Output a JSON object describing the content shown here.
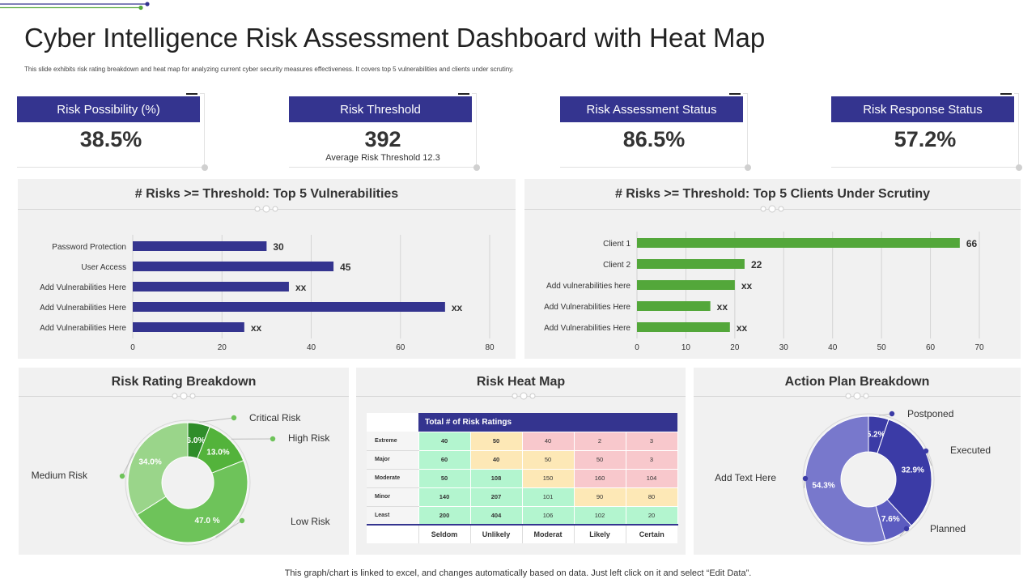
{
  "page": {
    "title": "Cyber Intelligence Risk Assessment Dashboard with Heat Map",
    "subtitle": "This slide exhibits risk rating breakdown and heat map for analyzing current cyber security measures effectiveness. It covers top 5 vulnerabilities and clients under scrutiny.",
    "footer": "This graph/chart is linked to excel,  and changes automatically based on data. Just left click on it and select “Edit Data”."
  },
  "colors": {
    "navy": "#34348f",
    "green": "#53a73a",
    "panel": "#f1f1f1"
  },
  "kpis": [
    {
      "label": "Risk Possibility (%)",
      "value": "38.5%",
      "note": ""
    },
    {
      "label": "Risk Threshold",
      "value": "392",
      "note": "Average Risk Threshold 12.3"
    },
    {
      "label": "Risk Assessment Status",
      "value": "86.5%",
      "note": ""
    },
    {
      "label": "Risk Response Status",
      "value": "57.2%",
      "note": ""
    }
  ],
  "panels": {
    "vulnerabilities": {
      "title": "# Risks >= Threshold: Top 5 Vulnerabilities"
    },
    "clients": {
      "title": "# Risks >= Threshold: Top 5 Clients Under Scrutiny"
    },
    "rating": {
      "title": "Risk Rating Breakdown"
    },
    "heatmap": {
      "title": "Risk Heat Map"
    },
    "action": {
      "title": "Action Plan Breakdown"
    }
  },
  "heatmap": {
    "header": "Total # of Risk Ratings",
    "columns": [
      "Seldom",
      "Unlikely",
      "Moderat",
      "Likely",
      "Certain"
    ],
    "rows": [
      {
        "label": "Extreme",
        "cells": [
          "40",
          "50",
          "40",
          "2",
          "3"
        ],
        "colors": [
          "g",
          "y",
          "r",
          "r",
          "r"
        ]
      },
      {
        "label": "Major",
        "cells": [
          "60",
          "40",
          "50",
          "50",
          "3"
        ],
        "colors": [
          "g",
          "y",
          "y",
          "r",
          "r"
        ]
      },
      {
        "label": "Moderate",
        "cells": [
          "50",
          "108",
          "150",
          "160",
          "104"
        ],
        "colors": [
          "g",
          "g",
          "y",
          "r",
          "r"
        ]
      },
      {
        "label": "Minor",
        "cells": [
          "140",
          "207",
          "101",
          "90",
          "80"
        ],
        "colors": [
          "g",
          "g",
          "g",
          "y",
          "y"
        ]
      },
      {
        "label": "Least",
        "cells": [
          "200",
          "404",
          "106",
          "102",
          "20"
        ],
        "colors": [
          "g",
          "g",
          "g",
          "g",
          "g"
        ]
      }
    ]
  },
  "chart_data": [
    {
      "id": "vulnerabilities",
      "type": "bar",
      "orientation": "horizontal",
      "title": "# Risks >= Threshold: Top 5 Vulnerabilities",
      "categories": [
        "Password Protection",
        "User Access",
        "Add Vulnerabilities Here",
        "Add Vulnerabilities Here",
        "Add Vulnerabilities Here"
      ],
      "values": [
        30,
        45,
        35,
        70,
        25
      ],
      "data_labels": [
        "30",
        "45",
        "xx",
        "xx",
        "xx"
      ],
      "xlim": [
        0,
        80
      ],
      "ticks": [
        0,
        20,
        40,
        60,
        80
      ],
      "color": "#34348f"
    },
    {
      "id": "clients",
      "type": "bar",
      "orientation": "horizontal",
      "title": "# Risks >= Threshold: Top 5 Clients Under Scrutiny",
      "categories": [
        "Client 1",
        "Client 2",
        "Add vulnerabilities here",
        "Add Vulnerabilities Here",
        "Add Vulnerabilities Here"
      ],
      "values": [
        66,
        22,
        20,
        15,
        19
      ],
      "data_labels": [
        "66",
        "22",
        "xx",
        "xx",
        "xx"
      ],
      "xlim": [
        0,
        70
      ],
      "ticks": [
        0,
        10,
        20,
        30,
        40,
        50,
        60,
        70
      ],
      "color": "#53a73a"
    },
    {
      "id": "rating",
      "type": "pie",
      "donut": true,
      "title": "Risk Rating Breakdown",
      "slices": [
        {
          "name": "Critical Risk",
          "value": 6.0,
          "label": "6.0%",
          "color": "#2f8d2a"
        },
        {
          "name": "High Risk",
          "value": 13.0,
          "label": "13.0%",
          "color": "#53b33b"
        },
        {
          "name": "Low Risk",
          "value": 47.0,
          "label": "47.0 %",
          "color": "#6ec35a"
        },
        {
          "name": "Medium Risk",
          "value": 34.0,
          "label": "34.0%",
          "color": "#9ad58a"
        }
      ]
    },
    {
      "id": "action",
      "type": "pie",
      "donut": true,
      "title": "Action Plan Breakdown",
      "slices": [
        {
          "name": "Postponed",
          "value": 5.2,
          "label": "5.2%",
          "color": "#3b3ba6"
        },
        {
          "name": "Executed",
          "value": 32.9,
          "label": "32.9%",
          "color": "#3b3ba6"
        },
        {
          "name": "Planned",
          "value": 7.6,
          "label": "7.6%",
          "color": "#5c5cc0"
        },
        {
          "name": "Add Text Here",
          "value": 54.3,
          "label": "54.3%",
          "color": "#7878cc"
        }
      ]
    }
  ]
}
